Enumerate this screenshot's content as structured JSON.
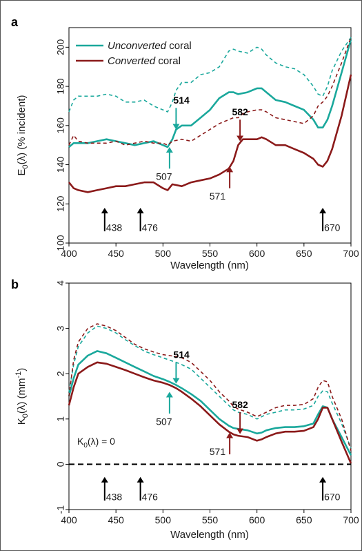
{
  "colors": {
    "unconverted": "#1aa89c",
    "converted": "#8b1a1a",
    "marker": "#000000"
  },
  "chart_data": [
    {
      "panel": "a",
      "type": "line",
      "xlabel": "Wavelength (nm)",
      "ylabel": "E0(λ) (% incident)",
      "ylabel_main": "E",
      "ylabel_sub": "0",
      "ylabel_rest": "(λ) (% incident)",
      "xlim": [
        400,
        700
      ],
      "ylim": [
        100,
        210
      ],
      "xticks": [
        400,
        450,
        500,
        550,
        600,
        650,
        700
      ],
      "yticks": [
        100,
        120,
        140,
        160,
        180,
        200
      ],
      "legend_position": "top-left",
      "legend": [
        {
          "key": "unconverted",
          "italic": "Unconverted",
          "rest": " coral"
        },
        {
          "key": "converted",
          "italic": "Converted",
          "rest": " coral"
        }
      ],
      "series": [
        {
          "key": "unconverted",
          "style": "solid",
          "x": [
            400,
            405,
            410,
            420,
            430,
            440,
            450,
            460,
            470,
            480,
            490,
            500,
            505,
            510,
            514,
            520,
            530,
            540,
            550,
            560,
            570,
            575,
            580,
            590,
            600,
            605,
            610,
            620,
            630,
            640,
            650,
            660,
            665,
            670,
            675,
            680,
            690,
            700
          ],
          "y": [
            149,
            151,
            151,
            151,
            152,
            153,
            152,
            151,
            150,
            151,
            152,
            150,
            149,
            153,
            158,
            160,
            160,
            164,
            168,
            174,
            177,
            177,
            176,
            177,
            179,
            179,
            177,
            173,
            172,
            170,
            168,
            163,
            159,
            159,
            163,
            170,
            187,
            204
          ]
        },
        {
          "key": "unconverted",
          "style": "dashed",
          "x": [
            400,
            405,
            410,
            420,
            430,
            440,
            450,
            460,
            470,
            480,
            490,
            500,
            505,
            510,
            514,
            520,
            530,
            540,
            550,
            560,
            570,
            575,
            580,
            590,
            600,
            605,
            610,
            620,
            630,
            640,
            650,
            660,
            665,
            670,
            675,
            680,
            690,
            700
          ],
          "y": [
            167,
            173,
            175,
            175,
            175,
            176,
            175,
            172,
            172,
            173,
            170,
            168,
            167,
            172,
            178,
            182,
            182,
            186,
            187,
            190,
            198,
            199,
            198,
            197,
            200,
            199,
            196,
            192,
            190,
            189,
            186,
            180,
            176,
            175,
            180,
            188,
            198,
            205
          ]
        },
        {
          "key": "converted",
          "style": "solid",
          "x": [
            400,
            405,
            410,
            420,
            430,
            440,
            450,
            460,
            470,
            480,
            490,
            500,
            505,
            510,
            520,
            530,
            540,
            550,
            560,
            570,
            575,
            580,
            585,
            590,
            600,
            605,
            610,
            620,
            630,
            640,
            650,
            660,
            665,
            670,
            675,
            680,
            690,
            700
          ],
          "y": [
            131,
            128,
            127,
            126,
            127,
            128,
            129,
            129,
            130,
            131,
            131,
            128,
            127,
            130,
            129,
            131,
            132,
            133,
            135,
            138,
            142,
            150,
            153,
            153,
            153,
            154,
            153,
            150,
            150,
            148,
            146,
            143,
            140,
            139,
            142,
            148,
            165,
            186
          ]
        },
        {
          "key": "converted",
          "style": "dashed",
          "x": [
            400,
            405,
            410,
            420,
            430,
            440,
            450,
            460,
            470,
            480,
            490,
            500,
            505,
            510,
            520,
            530,
            540,
            550,
            560,
            570,
            575,
            580,
            585,
            590,
            600,
            605,
            610,
            620,
            630,
            640,
            650,
            660,
            665,
            670,
            675,
            680,
            690,
            700
          ],
          "y": [
            150,
            155,
            152,
            151,
            151,
            151,
            152,
            150,
            151,
            152,
            151,
            151,
            150,
            152,
            153,
            152,
            155,
            158,
            161,
            163,
            164,
            164,
            166,
            167,
            168,
            168,
            167,
            164,
            163,
            162,
            161,
            165,
            170,
            172,
            175,
            180,
            192,
            205
          ]
        }
      ],
      "annotations": [
        {
          "label": "514",
          "bold": true,
          "x": 514,
          "color_key": "unconverted",
          "dir": "down",
          "tip": 158,
          "tail": 169,
          "text_y": 173,
          "text_dx": 8
        },
        {
          "label": "507",
          "bold": false,
          "x": 507,
          "color_key": "unconverted",
          "dir": "up",
          "tip": 149,
          "tail": 138,
          "text_y": 134,
          "text_dx": -8
        },
        {
          "label": "582",
          "bold": true,
          "x": 582,
          "color_key": "converted",
          "dir": "down",
          "tip": 152,
          "tail": 163,
          "text_y": 167,
          "text_dx": 0
        },
        {
          "label": "571",
          "bold": false,
          "x": 571,
          "color_key": "converted",
          "dir": "up",
          "tip": 139,
          "tail": 128,
          "text_y": 124,
          "text_dx": -12
        },
        {
          "label": "438",
          "bold": false,
          "x": 438,
          "color_key": "marker",
          "dir": "up",
          "tip": 118,
          "tail": 106,
          "text_y": 108,
          "text_dx": 14
        },
        {
          "label": "476",
          "bold": false,
          "x": 476,
          "color_key": "marker",
          "dir": "up",
          "tip": 118,
          "tail": 106,
          "text_y": 108,
          "text_dx": 14
        },
        {
          "label": "670",
          "bold": false,
          "x": 670,
          "color_key": "marker",
          "dir": "up",
          "tip": 118,
          "tail": 106,
          "text_y": 108,
          "text_dx": 14
        }
      ]
    },
    {
      "panel": "b",
      "type": "line",
      "xlabel": "Wavelength (nm)",
      "ylabel": "K0(λ) (mm-1)",
      "ylabel_main": "K",
      "ylabel_sub": "0",
      "ylabel_rest": "(λ) (mm",
      "ylabel_sup": "-1",
      "ylabel_end": ")",
      "xlim": [
        400,
        700
      ],
      "ylim": [
        -1,
        4
      ],
      "xticks": [
        400,
        450,
        500,
        550,
        600,
        650,
        700
      ],
      "yticks": [
        -1,
        0,
        1,
        2,
        3,
        4
      ],
      "zero_line_label_main": "K",
      "zero_line_label_sub": "0",
      "zero_line_label_rest": "(λ) = 0",
      "series": [
        {
          "key": "unconverted",
          "style": "solid",
          "x": [
            400,
            405,
            410,
            420,
            430,
            440,
            450,
            460,
            470,
            480,
            490,
            500,
            507,
            514,
            520,
            530,
            540,
            550,
            560,
            570,
            575,
            580,
            590,
            600,
            605,
            610,
            620,
            630,
            640,
            650,
            660,
            665,
            670,
            675,
            680,
            690,
            700
          ],
          "y": [
            1.5,
            1.9,
            2.2,
            2.4,
            2.5,
            2.45,
            2.35,
            2.25,
            2.15,
            2.05,
            1.95,
            1.88,
            1.82,
            1.75,
            1.68,
            1.55,
            1.4,
            1.2,
            1.0,
            0.85,
            0.8,
            0.78,
            0.75,
            0.68,
            0.7,
            0.75,
            0.8,
            0.82,
            0.82,
            0.84,
            0.9,
            1.1,
            1.28,
            1.25,
            1.0,
            0.6,
            0.2
          ]
        },
        {
          "key": "unconverted",
          "style": "dashed",
          "x": [
            400,
            405,
            410,
            420,
            430,
            440,
            450,
            460,
            470,
            480,
            490,
            500,
            507,
            514,
            520,
            530,
            540,
            550,
            560,
            570,
            575,
            580,
            590,
            600,
            605,
            610,
            620,
            630,
            640,
            650,
            660,
            665,
            670,
            675,
            680,
            690,
            700
          ],
          "y": [
            1.6,
            2.2,
            2.6,
            2.9,
            3.05,
            3.0,
            2.9,
            2.75,
            2.62,
            2.5,
            2.42,
            2.35,
            2.3,
            2.25,
            2.2,
            2.1,
            1.9,
            1.7,
            1.5,
            1.3,
            1.2,
            1.15,
            1.1,
            1.0,
            1.05,
            1.1,
            1.15,
            1.2,
            1.2,
            1.22,
            1.3,
            1.5,
            1.62,
            1.6,
            1.35,
            0.9,
            0.35
          ]
        },
        {
          "key": "converted",
          "style": "solid",
          "x": [
            400,
            405,
            410,
            420,
            430,
            440,
            450,
            460,
            470,
            480,
            490,
            500,
            507,
            514,
            520,
            530,
            540,
            550,
            560,
            570,
            575,
            580,
            590,
            600,
            605,
            610,
            620,
            630,
            640,
            650,
            660,
            665,
            670,
            675,
            680,
            690,
            700
          ],
          "y": [
            1.3,
            1.7,
            2.0,
            2.15,
            2.25,
            2.22,
            2.15,
            2.08,
            2.0,
            1.92,
            1.85,
            1.8,
            1.75,
            1.68,
            1.6,
            1.45,
            1.28,
            1.08,
            0.88,
            0.72,
            0.66,
            0.63,
            0.6,
            0.52,
            0.55,
            0.6,
            0.68,
            0.72,
            0.72,
            0.74,
            0.82,
            1.0,
            1.25,
            1.25,
            1.0,
            0.5,
            0.02
          ]
        },
        {
          "key": "converted",
          "style": "dashed",
          "x": [
            400,
            405,
            410,
            420,
            430,
            440,
            450,
            460,
            470,
            480,
            490,
            500,
            507,
            514,
            520,
            530,
            540,
            550,
            560,
            570,
            575,
            580,
            590,
            600,
            605,
            610,
            620,
            630,
            640,
            650,
            660,
            665,
            670,
            675,
            680,
            690,
            700
          ],
          "y": [
            1.5,
            2.3,
            2.7,
            3.0,
            3.1,
            3.05,
            2.95,
            2.8,
            2.65,
            2.55,
            2.48,
            2.42,
            2.4,
            2.38,
            2.35,
            2.25,
            2.05,
            1.85,
            1.6,
            1.4,
            1.28,
            1.22,
            1.15,
            1.05,
            1.1,
            1.15,
            1.25,
            1.3,
            1.3,
            1.32,
            1.45,
            1.7,
            1.85,
            1.82,
            1.5,
            1.0,
            0.3
          ]
        }
      ],
      "annotations": [
        {
          "label": "514",
          "bold": true,
          "x": 514,
          "color_key": "unconverted",
          "dir": "down",
          "tip": 1.78,
          "tail": 2.25,
          "text_y": 2.42,
          "text_dx": 8
        },
        {
          "label": "507",
          "bold": false,
          "x": 507,
          "color_key": "unconverted",
          "dir": "up",
          "tip": 1.6,
          "tail": 1.12,
          "text_y": 0.94,
          "text_dx": -8
        },
        {
          "label": "582",
          "bold": true,
          "x": 582,
          "color_key": "converted",
          "dir": "down",
          "tip": 0.67,
          "tail": 1.15,
          "text_y": 1.32,
          "text_dx": 0
        },
        {
          "label": "571",
          "bold": false,
          "x": 571,
          "color_key": "converted",
          "dir": "up",
          "tip": 0.7,
          "tail": 0.22,
          "text_y": 0.28,
          "text_dx": -12
        },
        {
          "label": "438",
          "bold": false,
          "x": 438,
          "color_key": "marker",
          "dir": "up",
          "tip": -0.28,
          "tail": -0.8,
          "text_y": -0.72,
          "text_dx": 14
        },
        {
          "label": "476",
          "bold": false,
          "x": 476,
          "color_key": "marker",
          "dir": "up",
          "tip": -0.28,
          "tail": -0.8,
          "text_y": -0.72,
          "text_dx": 14
        },
        {
          "label": "670",
          "bold": false,
          "x": 670,
          "color_key": "marker",
          "dir": "up",
          "tip": -0.28,
          "tail": -0.8,
          "text_y": -0.72,
          "text_dx": 14
        }
      ]
    }
  ]
}
